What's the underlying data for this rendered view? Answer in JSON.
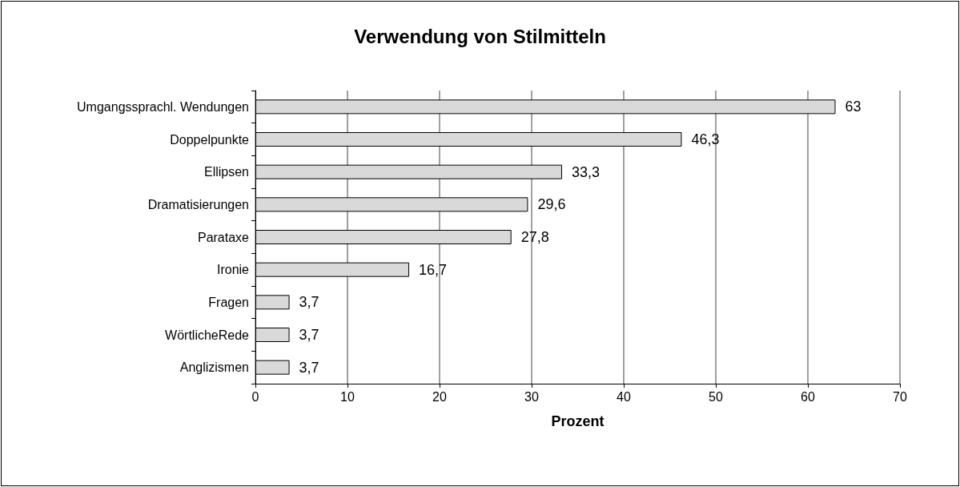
{
  "chart_data": {
    "type": "bar",
    "orientation": "horizontal",
    "title": "Verwendung von Stilmitteln",
    "xlabel": "Prozent",
    "categories": [
      "Umgangssprachl. Wendungen",
      "Doppelpunkte",
      "Ellipsen",
      "Dramatisierungen",
      "Parataxe",
      "Ironie",
      "Fragen",
      "WörtlicheRede",
      "Anglizismen"
    ],
    "values": [
      63,
      46.3,
      33.3,
      29.6,
      27.8,
      16.7,
      3.7,
      3.7,
      3.7
    ],
    "value_labels": [
      "63",
      "46,3",
      "33,3",
      "29,6",
      "27,8",
      "16,7",
      "3,7",
      "3,7",
      "3,7"
    ],
    "color": "#d9d9d9",
    "xlim": [
      0,
      70
    ],
    "xticks": [
      0,
      10,
      20,
      30,
      40,
      50,
      60,
      70
    ],
    "grid": "x"
  }
}
